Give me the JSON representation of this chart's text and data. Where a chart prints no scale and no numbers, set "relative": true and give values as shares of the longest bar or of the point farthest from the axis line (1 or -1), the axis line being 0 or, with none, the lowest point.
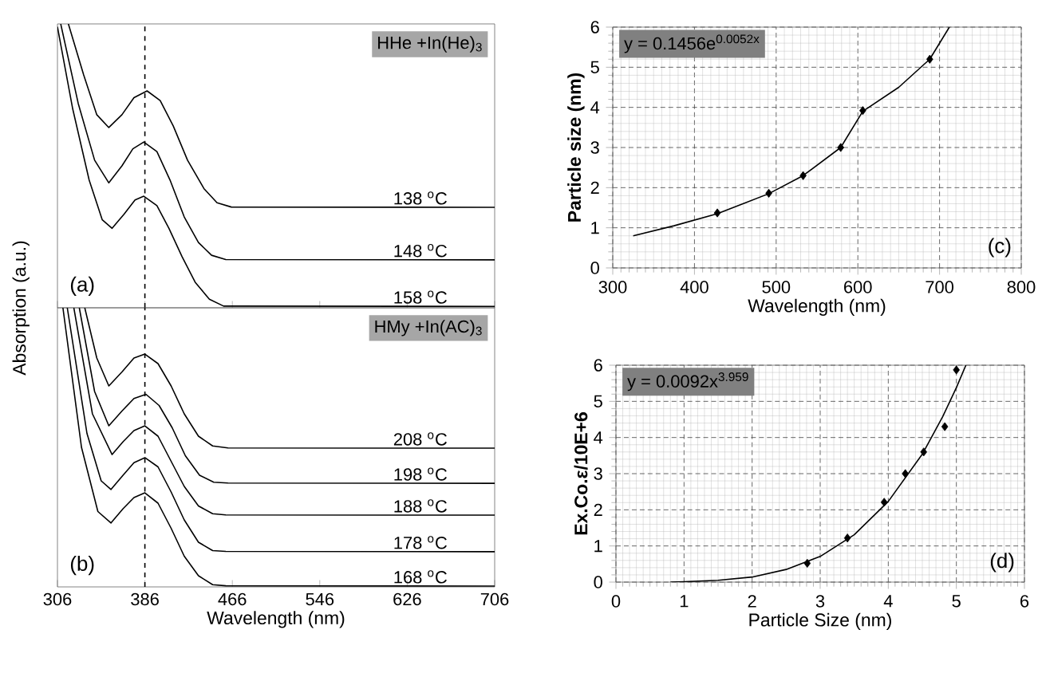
{
  "chart_data": [
    {
      "type": "line",
      "relative": true,
      "tick_labels": false,
      "ylabel": "Absorption (a.u.)",
      "xlim": [
        306,
        706
      ],
      "xticks": [
        306,
        386,
        466,
        546,
        626,
        706
      ],
      "annotations": [
        "HHe +In(He)$_{3}$",
        "(a)"
      ],
      "ref_lines": [
        {
          "axis": "x",
          "value": 386,
          "line_style": "dashed"
        }
      ],
      "series": [
        {
          "name": "138 $^{o}$C",
          "color": "#000000",
          "x": [
            316,
            330,
            342,
            353,
            365,
            376,
            388,
            400,
            412,
            425,
            440,
            452,
            465,
            706
          ],
          "values": [
            1.0,
            0.82,
            0.68,
            0.635,
            0.68,
            0.74,
            0.764,
            0.73,
            0.64,
            0.52,
            0.42,
            0.37,
            0.355,
            0.354
          ]
        },
        {
          "name": "148 $^{o}$C",
          "color": "#000000",
          "x": [
            309,
            325,
            340,
            353,
            365,
            375,
            385,
            397,
            409,
            422,
            435,
            447,
            460,
            706
          ],
          "values": [
            1.0,
            0.72,
            0.52,
            0.44,
            0.5,
            0.56,
            0.584,
            0.55,
            0.45,
            0.32,
            0.23,
            0.185,
            0.17,
            0.169
          ]
        },
        {
          "name": "158 $^{o}$C",
          "color": "#000000",
          "x": [
            306,
            320,
            335,
            347,
            356,
            367,
            377,
            385,
            397,
            408,
            420,
            432,
            445,
            458,
            706
          ],
          "values": [
            0.99,
            0.7,
            0.45,
            0.31,
            0.28,
            0.33,
            0.38,
            0.393,
            0.36,
            0.28,
            0.18,
            0.09,
            0.03,
            0.006,
            0.005
          ]
        }
      ]
    },
    {
      "type": "line",
      "relative": true,
      "tick_labels": "x",
      "xlabel": "Wavelength (nm)",
      "xlim": [
        306,
        706
      ],
      "xticks": [
        306,
        386,
        466,
        546,
        626,
        706
      ],
      "annotations": [
        "HMy +In(AC)$_{3}$",
        "(b)"
      ],
      "ref_lines": [
        {
          "axis": "x",
          "value": 386,
          "line_style": "dashed"
        }
      ],
      "series": [
        {
          "name": "208 $^{o}$C",
          "color": "#000000",
          "x": [
            331,
            342,
            353,
            365,
            376,
            386,
            398,
            410,
            422,
            435,
            448,
            462,
            706
          ],
          "values": [
            1.0,
            0.82,
            0.72,
            0.77,
            0.82,
            0.834,
            0.8,
            0.72,
            0.62,
            0.54,
            0.505,
            0.498,
            0.497
          ]
        },
        {
          "name": "198 $^{o}$C",
          "color": "#000000",
          "x": [
            326,
            340,
            353,
            365,
            376,
            387,
            399,
            411,
            423,
            436,
            449,
            462,
            706
          ],
          "values": [
            1.0,
            0.7,
            0.577,
            0.63,
            0.675,
            0.69,
            0.65,
            0.57,
            0.47,
            0.4,
            0.375,
            0.372,
            0.371
          ]
        },
        {
          "name": "188 $^{o}$C",
          "color": "#000000",
          "x": [
            321,
            338,
            356,
            366,
            376,
            386,
            398,
            410,
            422,
            435,
            448,
            460,
            706
          ],
          "values": [
            1.0,
            0.62,
            0.474,
            0.52,
            0.56,
            0.577,
            0.54,
            0.45,
            0.36,
            0.29,
            0.262,
            0.258,
            0.257
          ]
        },
        {
          "name": "178 $^{o}$C",
          "color": "#000000",
          "x": [
            315,
            333,
            346,
            355,
            366,
            376,
            386,
            398,
            410,
            422,
            435,
            448,
            460,
            706
          ],
          "values": [
            1.0,
            0.55,
            0.38,
            0.349,
            0.4,
            0.445,
            0.463,
            0.43,
            0.34,
            0.24,
            0.16,
            0.13,
            0.127,
            0.126
          ]
        },
        {
          "name": "168 $^{o}$C",
          "color": "#000000",
          "x": [
            311,
            328,
            343,
            355,
            366,
            376,
            386,
            398,
            410,
            422,
            435,
            448,
            460,
            706
          ],
          "values": [
            1.0,
            0.5,
            0.27,
            0.229,
            0.28,
            0.32,
            0.337,
            0.3,
            0.21,
            0.11,
            0.04,
            0.008,
            0.004,
            0.003
          ]
        }
      ]
    },
    {
      "type": "scatter",
      "grid": true,
      "xlabel": "Wavelength (nm)",
      "ylabel": "Particle size (nm)",
      "xlim": [
        300,
        800
      ],
      "ylim": [
        0,
        6
      ],
      "xticks": [
        300,
        400,
        500,
        600,
        700,
        800
      ],
      "yticks": [
        0,
        1,
        2,
        3,
        4,
        5,
        6
      ],
      "annotations": [
        "y = 0.1456e$^{0.0052x}$",
        "(c)"
      ],
      "series": [
        {
          "type": "scatter",
          "marker": "diamond",
          "color": "#000000",
          "x": [
            428,
            491,
            533,
            579,
            606,
            688
          ],
          "values": [
            1.37,
            1.86,
            2.3,
            3.0,
            3.92,
            5.2
          ]
        },
        {
          "type": "line",
          "marker": "none",
          "color": "#000000",
          "x": [
            325,
            375,
            428,
            491,
            533,
            579,
            606,
            650,
            688,
            712
          ],
          "values": [
            0.8,
            1.05,
            1.35,
            1.85,
            2.3,
            3.0,
            3.9,
            4.5,
            5.2,
            6.0
          ]
        }
      ]
    },
    {
      "type": "scatter",
      "grid": true,
      "xlabel": "Particle Size (nm)",
      "ylabel": "Ex.Co.ε/10E+6",
      "xlim": [
        0,
        6
      ],
      "ylim": [
        0,
        6
      ],
      "xticks": [
        0,
        1,
        2,
        3,
        4,
        5,
        6
      ],
      "yticks": [
        0,
        1,
        2,
        3,
        4,
        5,
        6
      ],
      "annotations": [
        "y = 0.0092x$^{3.959}$",
        "(d)"
      ],
      "series": [
        {
          "type": "scatter",
          "marker": "diamond",
          "color": "#000000",
          "x": [
            2.81,
            3.4,
            3.94,
            4.25,
            4.52,
            4.83,
            5.0
          ],
          "values": [
            0.52,
            1.22,
            2.21,
            3.0,
            3.6,
            4.3,
            5.87
          ]
        },
        {
          "type": "line",
          "marker": "none",
          "color": "#000000",
          "x": [
            0.8,
            1,
            1.5,
            2,
            2.5,
            3,
            3.5,
            4,
            4.5,
            4.8,
            5,
            5.14
          ],
          "values": [
            0.0,
            0.01,
            0.05,
            0.14,
            0.35,
            0.71,
            1.31,
            2.23,
            3.54,
            4.58,
            5.38,
            6.0
          ]
        }
      ]
    }
  ]
}
